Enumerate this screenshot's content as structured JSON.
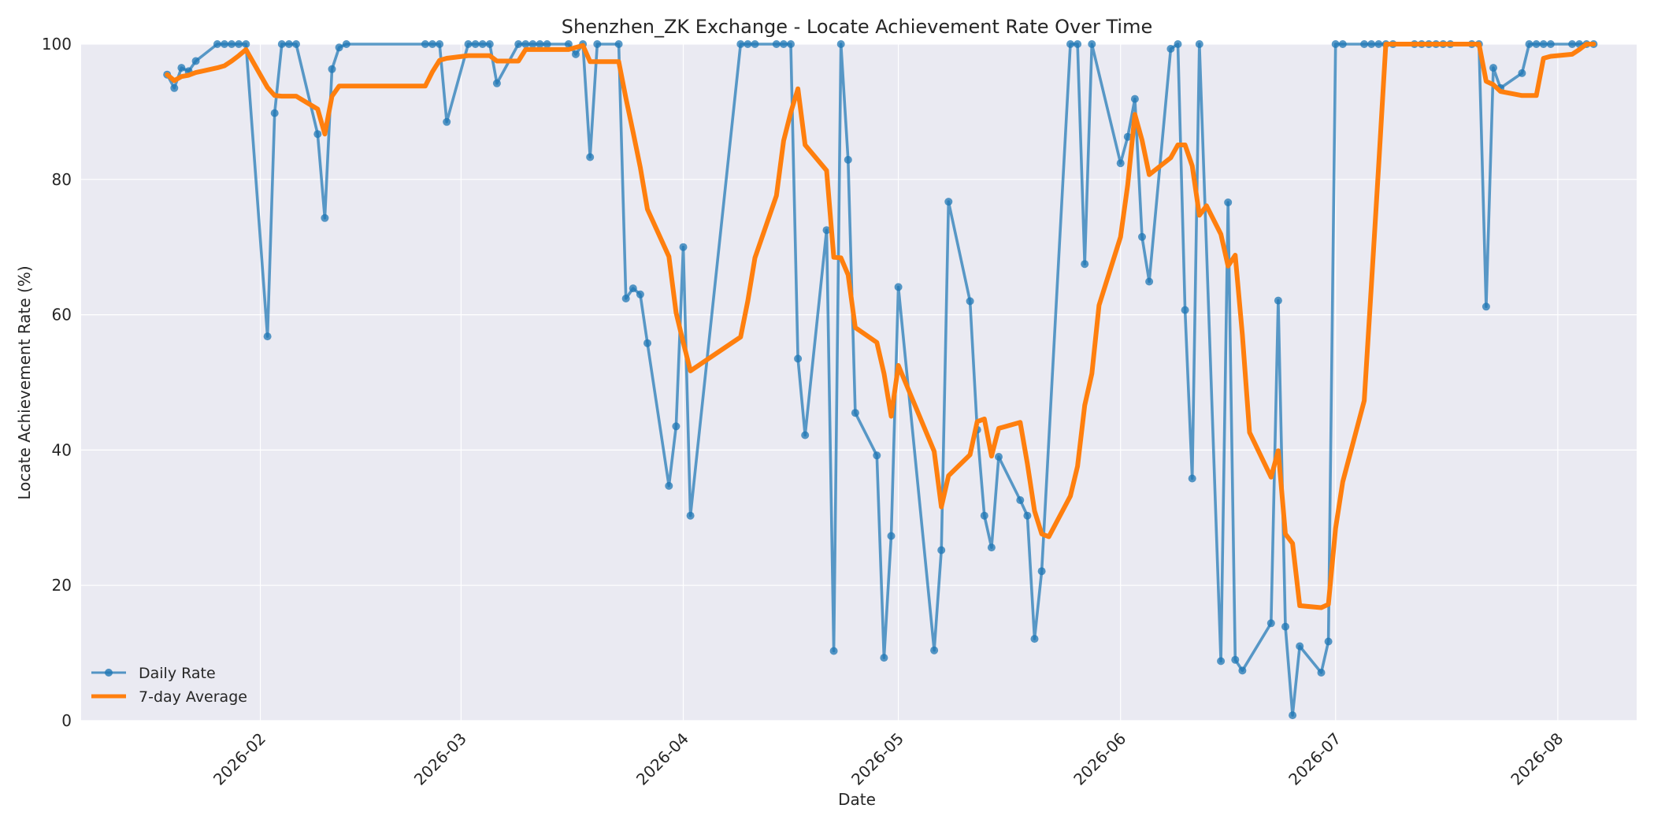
{
  "chart_data": {
    "type": "line",
    "title": "Shenzhen_ZK Exchange - Locate Achievement Rate Over Time",
    "xlabel": "Date",
    "ylabel": "Locate Achievement Rate (%)",
    "xlim": [
      "2026-01-07",
      "2026-08-12"
    ],
    "ylim": [
      0,
      100
    ],
    "x_ticks": [
      "2026-02",
      "2026-03",
      "2026-04",
      "2026-05",
      "2026-06",
      "2026-07",
      "2026-08"
    ],
    "y_ticks": [
      0,
      20,
      40,
      60,
      80,
      100
    ],
    "grid": true,
    "legend_position": "lower-left",
    "colors": {
      "daily": "#1f77b4",
      "average": "#ff7f0e",
      "plot_background": "#eaeaf2",
      "grid": "#ffffff"
    },
    "series": [
      {
        "name": "Daily Rate",
        "marker": "circle",
        "points": [
          [
            "2026-01-19",
            95.5
          ],
          [
            "2026-01-20",
            93.5
          ],
          [
            "2026-01-21",
            96.5
          ],
          [
            "2026-01-22",
            96.0
          ],
          [
            "2026-01-23",
            97.5
          ],
          [
            "2026-01-26",
            100
          ],
          [
            "2026-01-27",
            100
          ],
          [
            "2026-01-28",
            100
          ],
          [
            "2026-01-29",
            100
          ],
          [
            "2026-01-30",
            100
          ],
          [
            "2026-02-02",
            56.8
          ],
          [
            "2026-02-03",
            89.8
          ],
          [
            "2026-02-04",
            100
          ],
          [
            "2026-02-05",
            100
          ],
          [
            "2026-02-06",
            100
          ],
          [
            "2026-02-09",
            86.7
          ],
          [
            "2026-02-10",
            74.3
          ],
          [
            "2026-02-11",
            96.3
          ],
          [
            "2026-02-12",
            99.5
          ],
          [
            "2026-02-13",
            100
          ],
          [
            "2026-02-24",
            100
          ],
          [
            "2026-02-25",
            100
          ],
          [
            "2026-02-26",
            100
          ],
          [
            "2026-02-27",
            88.5
          ],
          [
            "2026-03-02",
            100
          ],
          [
            "2026-03-03",
            100
          ],
          [
            "2026-03-04",
            100
          ],
          [
            "2026-03-05",
            100
          ],
          [
            "2026-03-06",
            94.2
          ],
          [
            "2026-03-09",
            100
          ],
          [
            "2026-03-10",
            100
          ],
          [
            "2026-03-11",
            100
          ],
          [
            "2026-03-12",
            100
          ],
          [
            "2026-03-13",
            100
          ],
          [
            "2026-03-16",
            100
          ],
          [
            "2026-03-17",
            98.5
          ],
          [
            "2026-03-18",
            100
          ],
          [
            "2026-03-19",
            83.3
          ],
          [
            "2026-03-20",
            100
          ],
          [
            "2026-03-23",
            100
          ],
          [
            "2026-03-24",
            62.4
          ],
          [
            "2026-03-25",
            63.9
          ],
          [
            "2026-03-26",
            63.0
          ],
          [
            "2026-03-27",
            55.8
          ],
          [
            "2026-03-30",
            34.7
          ],
          [
            "2026-03-31",
            43.5
          ],
          [
            "2026-04-01",
            70.0
          ],
          [
            "2026-04-02",
            30.3
          ],
          [
            "2026-04-09",
            100
          ],
          [
            "2026-04-10",
            100
          ],
          [
            "2026-04-11",
            100
          ],
          [
            "2026-04-14",
            100
          ],
          [
            "2026-04-15",
            100
          ],
          [
            "2026-04-16",
            100
          ],
          [
            "2026-04-17",
            53.5
          ],
          [
            "2026-04-18",
            42.2
          ],
          [
            "2026-04-21",
            72.5
          ],
          [
            "2026-04-22",
            10.3
          ],
          [
            "2026-04-23",
            100
          ],
          [
            "2026-04-24",
            82.9
          ],
          [
            "2026-04-25",
            45.5
          ],
          [
            "2026-04-28",
            39.2
          ],
          [
            "2026-04-29",
            9.3
          ],
          [
            "2026-04-30",
            27.3
          ],
          [
            "2026-05-01",
            64.1
          ],
          [
            "2026-05-06",
            10.4
          ],
          [
            "2026-05-07",
            25.2
          ],
          [
            "2026-05-08",
            76.7
          ],
          [
            "2026-05-11",
            62.0
          ],
          [
            "2026-05-12",
            43.0
          ],
          [
            "2026-05-13",
            30.3
          ],
          [
            "2026-05-14",
            25.6
          ],
          [
            "2026-05-15",
            39.0
          ],
          [
            "2026-05-18",
            32.6
          ],
          [
            "2026-05-19",
            30.3
          ],
          [
            "2026-05-20",
            12.1
          ],
          [
            "2026-05-21",
            22.1
          ],
          [
            "2026-05-25",
            100
          ],
          [
            "2026-05-26",
            100
          ],
          [
            "2026-05-27",
            67.5
          ],
          [
            "2026-05-28",
            100
          ],
          [
            "2026-06-01",
            82.4
          ],
          [
            "2026-06-02",
            86.3
          ],
          [
            "2026-06-03",
            91.9
          ],
          [
            "2026-06-04",
            71.5
          ],
          [
            "2026-06-05",
            64.9
          ],
          [
            "2026-06-08",
            99.3
          ],
          [
            "2026-06-09",
            100
          ],
          [
            "2026-06-10",
            60.7
          ],
          [
            "2026-06-11",
            35.8
          ],
          [
            "2026-06-12",
            100
          ],
          [
            "2026-06-15",
            8.8
          ],
          [
            "2026-06-16",
            76.6
          ],
          [
            "2026-06-17",
            9.0
          ],
          [
            "2026-06-18",
            7.4
          ],
          [
            "2026-06-22",
            14.4
          ],
          [
            "2026-06-23",
            62.1
          ],
          [
            "2026-06-24",
            13.9
          ],
          [
            "2026-06-25",
            0.8
          ],
          [
            "2026-06-26",
            11.0
          ],
          [
            "2026-06-29",
            7.1
          ],
          [
            "2026-06-30",
            11.7
          ],
          [
            "2026-07-01",
            100
          ],
          [
            "2026-07-02",
            100
          ],
          [
            "2026-07-05",
            100
          ],
          [
            "2026-07-06",
            100
          ],
          [
            "2026-07-07",
            100
          ],
          [
            "2026-07-08",
            100
          ],
          [
            "2026-07-09",
            100
          ],
          [
            "2026-07-12",
            100
          ],
          [
            "2026-07-13",
            100
          ],
          [
            "2026-07-14",
            100
          ],
          [
            "2026-07-15",
            100
          ],
          [
            "2026-07-16",
            100
          ],
          [
            "2026-07-17",
            100
          ],
          [
            "2026-07-20",
            100
          ],
          [
            "2026-07-21",
            100
          ],
          [
            "2026-07-22",
            61.2
          ],
          [
            "2026-07-23",
            96.5
          ],
          [
            "2026-07-24",
            93.5
          ],
          [
            "2026-07-27",
            95.7
          ],
          [
            "2026-07-28",
            100
          ],
          [
            "2026-07-29",
            100
          ],
          [
            "2026-07-30",
            100
          ],
          [
            "2026-07-31",
            100
          ],
          [
            "2026-08-03",
            100
          ],
          [
            "2026-08-04",
            100
          ],
          [
            "2026-08-05",
            100
          ],
          [
            "2026-08-06",
            100
          ]
        ]
      },
      {
        "name": "7-day Average",
        "marker": "none",
        "points": [
          [
            "2026-01-19",
            95.5
          ],
          [
            "2026-01-20",
            94.6
          ],
          [
            "2026-01-21",
            95.2
          ],
          [
            "2026-01-22",
            95.4
          ],
          [
            "2026-01-23",
            95.8
          ],
          [
            "2026-01-26",
            96.5
          ],
          [
            "2026-01-27",
            96.8
          ],
          [
            "2026-01-28",
            97.5
          ],
          [
            "2026-01-29",
            98.3
          ],
          [
            "2026-01-30",
            99.2
          ],
          [
            "2026-02-02",
            93.6
          ],
          [
            "2026-02-03",
            92.4
          ],
          [
            "2026-02-04",
            92.3
          ],
          [
            "2026-02-05",
            92.3
          ],
          [
            "2026-02-06",
            92.3
          ],
          [
            "2026-02-09",
            90.4
          ],
          [
            "2026-02-10",
            86.7
          ],
          [
            "2026-02-11",
            92.3
          ],
          [
            "2026-02-12",
            93.8
          ],
          [
            "2026-02-13",
            93.8
          ],
          [
            "2026-02-24",
            93.8
          ],
          [
            "2026-02-25",
            95.9
          ],
          [
            "2026-02-26",
            97.6
          ],
          [
            "2026-02-27",
            97.9
          ],
          [
            "2026-03-02",
            98.3
          ],
          [
            "2026-03-03",
            98.3
          ],
          [
            "2026-03-04",
            98.3
          ],
          [
            "2026-03-05",
            98.3
          ],
          [
            "2026-03-06",
            97.5
          ],
          [
            "2026-03-09",
            97.5
          ],
          [
            "2026-03-10",
            99.2
          ],
          [
            "2026-03-11",
            99.2
          ],
          [
            "2026-03-12",
            99.2
          ],
          [
            "2026-03-13",
            99.2
          ],
          [
            "2026-03-16",
            99.2
          ],
          [
            "2026-03-17",
            99.5
          ],
          [
            "2026-03-18",
            99.8
          ],
          [
            "2026-03-19",
            97.4
          ],
          [
            "2026-03-20",
            97.4
          ],
          [
            "2026-03-23",
            97.4
          ],
          [
            "2026-03-24",
            92.0
          ],
          [
            "2026-03-25",
            87.0
          ],
          [
            "2026-03-26",
            81.8
          ],
          [
            "2026-03-27",
            75.6
          ],
          [
            "2026-03-30",
            68.6
          ],
          [
            "2026-03-31",
            60.3
          ],
          [
            "2026-04-01",
            55.9
          ],
          [
            "2026-04-02",
            51.7
          ],
          [
            "2026-04-09",
            56.7
          ],
          [
            "2026-04-10",
            62.0
          ],
          [
            "2026-04-11",
            68.4
          ],
          [
            "2026-04-14",
            77.6
          ],
          [
            "2026-04-15",
            85.7
          ],
          [
            "2026-04-16",
            89.9
          ],
          [
            "2026-04-17",
            93.4
          ],
          [
            "2026-04-18",
            85.1
          ],
          [
            "2026-04-21",
            81.3
          ],
          [
            "2026-04-22",
            68.5
          ],
          [
            "2026-04-23",
            68.4
          ],
          [
            "2026-04-24",
            65.9
          ],
          [
            "2026-04-25",
            58.1
          ],
          [
            "2026-04-28",
            55.9
          ],
          [
            "2026-04-29",
            51.3
          ],
          [
            "2026-04-30",
            45.0
          ],
          [
            "2026-05-01",
            52.5
          ],
          [
            "2026-05-06",
            39.8
          ],
          [
            "2026-05-07",
            31.6
          ],
          [
            "2026-05-08",
            36.2
          ],
          [
            "2026-05-11",
            39.3
          ],
          [
            "2026-05-12",
            44.2
          ],
          [
            "2026-05-13",
            44.6
          ],
          [
            "2026-05-14",
            39.1
          ],
          [
            "2026-05-15",
            43.2
          ],
          [
            "2026-05-18",
            44.1
          ],
          [
            "2026-05-19",
            38.0
          ],
          [
            "2026-05-20",
            31.0
          ],
          [
            "2026-05-21",
            27.6
          ],
          [
            "2026-05-22",
            27.2
          ],
          [
            "2026-05-25",
            33.2
          ],
          [
            "2026-05-26",
            37.6
          ],
          [
            "2026-05-27",
            46.6
          ],
          [
            "2026-05-28",
            51.3
          ],
          [
            "2026-05-29",
            61.4
          ],
          [
            "2026-06-01",
            71.5
          ],
          [
            "2026-06-02",
            79.2
          ],
          [
            "2026-06-03",
            89.6
          ],
          [
            "2026-06-04",
            85.8
          ],
          [
            "2026-06-05",
            80.7
          ],
          [
            "2026-06-08",
            83.2
          ],
          [
            "2026-06-09",
            85.1
          ],
          [
            "2026-06-10",
            85.1
          ],
          [
            "2026-06-11",
            82.0
          ],
          [
            "2026-06-12",
            74.7
          ],
          [
            "2026-06-13",
            76.1
          ],
          [
            "2026-06-15",
            71.9
          ],
          [
            "2026-06-16",
            67.2
          ],
          [
            "2026-06-17",
            68.8
          ],
          [
            "2026-06-18",
            57.0
          ],
          [
            "2026-06-19",
            42.6
          ],
          [
            "2026-06-22",
            36.0
          ],
          [
            "2026-06-23",
            39.9
          ],
          [
            "2026-06-24",
            27.6
          ],
          [
            "2026-06-25",
            26.2
          ],
          [
            "2026-06-26",
            17.0
          ],
          [
            "2026-06-29",
            16.7
          ],
          [
            "2026-06-30",
            17.2
          ],
          [
            "2026-07-01",
            28.4
          ],
          [
            "2026-07-02",
            35.3
          ],
          [
            "2026-07-05",
            47.3
          ],
          [
            "2026-07-06",
            64.4
          ],
          [
            "2026-07-07",
            82.0
          ],
          [
            "2026-07-08",
            100
          ],
          [
            "2026-07-09",
            100
          ],
          [
            "2026-07-12",
            100
          ],
          [
            "2026-07-13",
            100
          ],
          [
            "2026-07-14",
            100
          ],
          [
            "2026-07-15",
            100
          ],
          [
            "2026-07-16",
            100
          ],
          [
            "2026-07-17",
            100
          ],
          [
            "2026-07-20",
            100
          ],
          [
            "2026-07-21",
            100
          ],
          [
            "2026-07-22",
            94.5
          ],
          [
            "2026-07-23",
            94.0
          ],
          [
            "2026-07-24",
            93.0
          ],
          [
            "2026-07-27",
            92.4
          ],
          [
            "2026-07-28",
            92.4
          ],
          [
            "2026-07-29",
            92.4
          ],
          [
            "2026-07-30",
            97.9
          ],
          [
            "2026-07-31",
            98.2
          ],
          [
            "2026-08-03",
            98.5
          ],
          [
            "2026-08-04",
            99.2
          ],
          [
            "2026-08-05",
            100
          ],
          [
            "2026-08-06",
            100
          ]
        ]
      }
    ]
  }
}
